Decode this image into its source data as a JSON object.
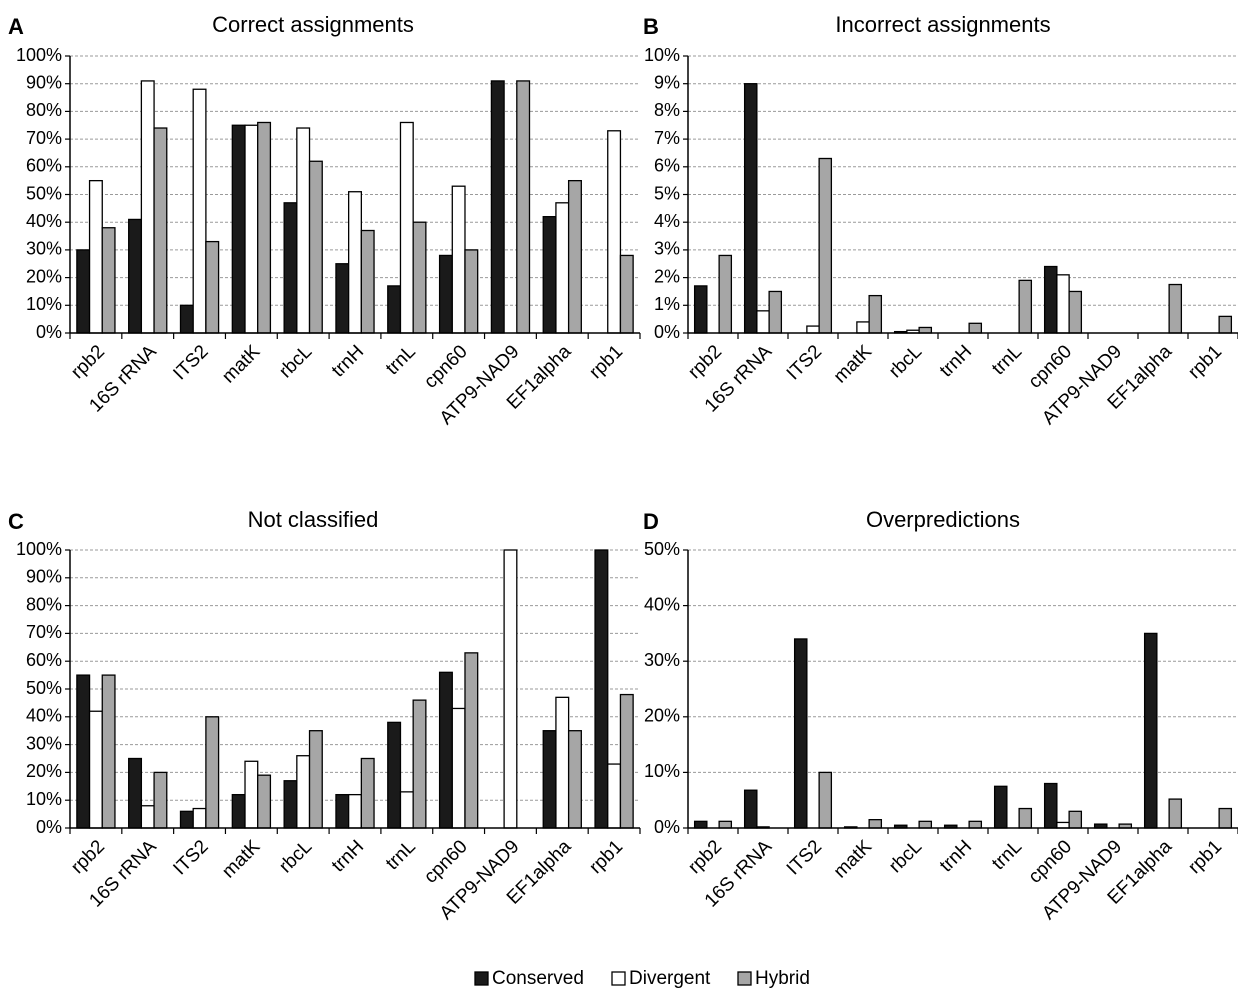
{
  "colors": {
    "Conserved": "#1a1a1a",
    "Divergent": "#ffffff",
    "Hybrid": "#a6a6a6"
  },
  "legend": {
    "items": [
      "Conserved",
      "Divergent",
      "Hybrid"
    ]
  },
  "chart_data": [
    {
      "panel": "A",
      "type": "bar",
      "title": "Correct assignments",
      "categories": [
        "rpb2",
        "16S rRNA",
        "ITS2",
        "matK",
        "rbcL",
        "trnH",
        "trnL",
        "cpn60",
        "ATP9-NAD9",
        "EF1alpha",
        "rpb1"
      ],
      "series": [
        {
          "name": "Conserved",
          "values": [
            30,
            41,
            10,
            75,
            47,
            25,
            17,
            28,
            91,
            42,
            0
          ]
        },
        {
          "name": "Divergent",
          "values": [
            55,
            91,
            88,
            75,
            74,
            51,
            76,
            53,
            0,
            47,
            73
          ]
        },
        {
          "name": "Hybrid",
          "values": [
            38,
            74,
            33,
            76,
            62,
            37,
            40,
            30,
            91,
            55,
            28
          ]
        }
      ],
      "yticks": [
        "0%",
        "10%",
        "20%",
        "30%",
        "40%",
        "50%",
        "60%",
        "70%",
        "80%",
        "90%",
        "100%"
      ],
      "ylim": [
        0,
        100
      ],
      "grid": true
    },
    {
      "panel": "B",
      "type": "bar",
      "title": "Incorrect assignments",
      "categories": [
        "rpb2",
        "16S rRNA",
        "ITS2",
        "matK",
        "rbcL",
        "trnH",
        "trnL",
        "cpn60",
        "ATP9-NAD9",
        "EF1alpha",
        "rpb1"
      ],
      "series": [
        {
          "name": "Conserved",
          "values": [
            1.7,
            9.0,
            0,
            0,
            0.05,
            0,
            0,
            2.4,
            0,
            0,
            0
          ]
        },
        {
          "name": "Divergent",
          "values": [
            0,
            0.8,
            0.25,
            0.4,
            0.1,
            0,
            0,
            2.1,
            0,
            0,
            0
          ]
        },
        {
          "name": "Hybrid",
          "values": [
            2.8,
            1.5,
            6.3,
            1.35,
            0.2,
            0.35,
            1.9,
            1.5,
            0,
            1.75,
            0.6
          ]
        }
      ],
      "yticks": [
        "0%",
        "1%",
        "2%",
        "3%",
        "4%",
        "5%",
        "6%",
        "7%",
        "8%",
        "9%",
        "10%"
      ],
      "ylim": [
        0,
        10
      ],
      "grid": true
    },
    {
      "panel": "C",
      "type": "bar",
      "title": "Not classified",
      "categories": [
        "rpb2",
        "16S rRNA",
        "ITS2",
        "matK",
        "rbcL",
        "trnH",
        "trnL",
        "cpn60",
        "ATP9-NAD9",
        "EF1alpha",
        "rpb1"
      ],
      "series": [
        {
          "name": "Conserved",
          "values": [
            55,
            25,
            6,
            12,
            17,
            12,
            38,
            56,
            0,
            35,
            100
          ]
        },
        {
          "name": "Divergent",
          "values": [
            42,
            8,
            7,
            24,
            26,
            12,
            13,
            43,
            100,
            47,
            23
          ]
        },
        {
          "name": "Hybrid",
          "values": [
            55,
            20,
            40,
            19,
            35,
            25,
            46,
            63,
            0,
            35,
            48
          ]
        }
      ],
      "yticks": [
        "0%",
        "10%",
        "20%",
        "30%",
        "40%",
        "50%",
        "60%",
        "70%",
        "80%",
        "90%",
        "100%"
      ],
      "ylim": [
        0,
        100
      ],
      "grid": true
    },
    {
      "panel": "D",
      "type": "bar",
      "title": "Overpredictions",
      "categories": [
        "rpb2",
        "16S rRNA",
        "ITS2",
        "matK",
        "rbcL",
        "trnH",
        "trnL",
        "cpn60",
        "ATP9-NAD9",
        "EF1alpha",
        "rpb1"
      ],
      "series": [
        {
          "name": "Conserved",
          "values": [
            1.2,
            6.8,
            34,
            0.2,
            0.5,
            0.5,
            7.5,
            8,
            0.7,
            35,
            0
          ]
        },
        {
          "name": "Divergent",
          "values": [
            0,
            0.2,
            0,
            0,
            0,
            0,
            0,
            1,
            0,
            0,
            0
          ]
        },
        {
          "name": "Hybrid",
          "values": [
            1.2,
            0,
            10,
            1.5,
            1.2,
            1.2,
            3.5,
            3,
            0.7,
            5.2,
            3.5
          ]
        }
      ],
      "yticks": [
        "0%",
        "10%",
        "20%",
        "30%",
        "40%",
        "50%"
      ],
      "ylim": [
        0,
        50
      ],
      "grid": true
    }
  ]
}
